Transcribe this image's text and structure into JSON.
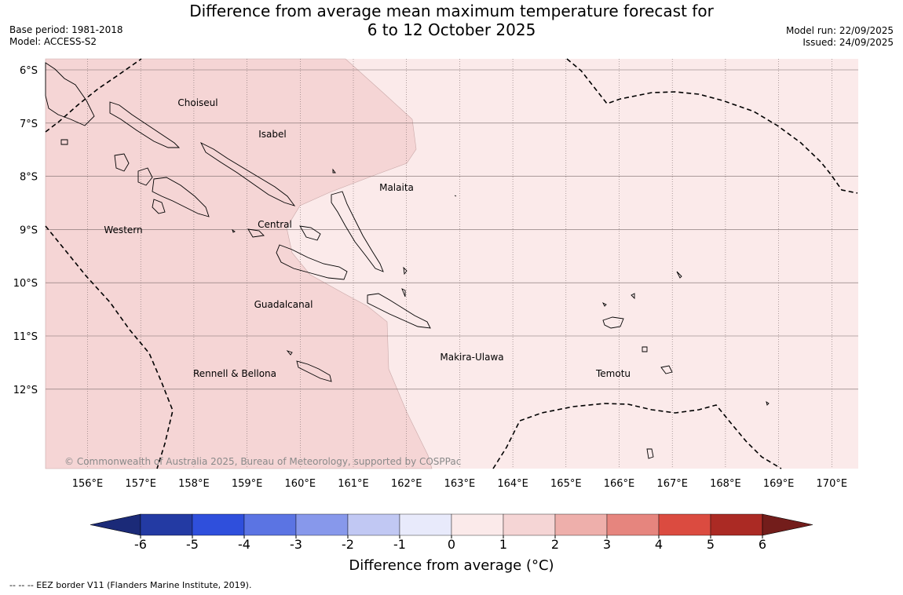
{
  "header": {
    "title_line1": "Difference from average mean maximum temperature forecast for",
    "title_line2": "6 to 12 October 2025",
    "base_period": "Base period: 1981-2018",
    "model": "Model: ACCESS-S2",
    "model_run": "Model run: 22/09/2025",
    "issued": "Issued: 24/09/2025"
  },
  "map": {
    "longitudes": [
      "156°E",
      "157°E",
      "158°E",
      "159°E",
      "160°E",
      "161°E",
      "162°E",
      "163°E",
      "164°E",
      "165°E",
      "166°E",
      "167°E",
      "168°E",
      "169°E",
      "170°E"
    ],
    "latitudes": [
      "6°S",
      "7°S",
      "8°S",
      "9°S",
      "10°S",
      "11°S",
      "12°S"
    ],
    "provinces": [
      "Choiseul",
      "Isabel",
      "Malaita",
      "Western",
      "Central",
      "Guadalcanal",
      "Makira-Ulawa",
      "Rennell & Bellona",
      "Temotu"
    ],
    "copyright": "© Commonwealth of Australia 2025, Bureau of Meteorology, supported by COSPPac",
    "fill_colors": {
      "one_to_two": "#f5d5d5",
      "zero_to_one": "#fbeaea"
    }
  },
  "colorbar": {
    "label": "Difference from average (°C)",
    "ticks": [
      "-6",
      "-5",
      "-4",
      "-3",
      "-2",
      "-1",
      "0",
      "1",
      "2",
      "3",
      "4",
      "5",
      "6"
    ],
    "colors": [
      "#233aa3",
      "#2f4fdc",
      "#5b74e3",
      "#8798eb",
      "#c1c8f3",
      "#e8eafb",
      "#fbeaea",
      "#f5d5d5",
      "#eeafab",
      "#e6857e",
      "#db4b40",
      "#ab2a24"
    ],
    "under_color": "#1b2a78",
    "over_color": "#731d1b"
  },
  "footer": {
    "legend": "--  --  -- EEZ border V11 (Flanders Marine Institute, 2019)."
  }
}
